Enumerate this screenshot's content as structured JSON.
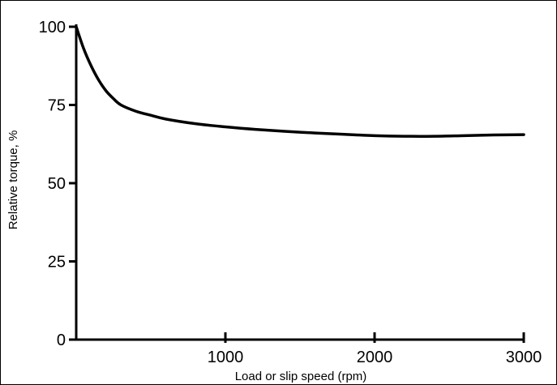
{
  "chart_data": {
    "type": "line",
    "title": "",
    "xlabel": "Load or slip speed (rpm)",
    "ylabel": "Relative torque, %",
    "xlim": [
      0,
      3000
    ],
    "ylim": [
      0,
      100
    ],
    "x_ticks": [
      1000,
      2000,
      3000
    ],
    "x_tick_labels": [
      "1000",
      "2000",
      "3000"
    ],
    "y_ticks": [
      0,
      25,
      50,
      75,
      100
    ],
    "y_tick_labels": [
      "0",
      "25",
      "50",
      "75",
      "100"
    ],
    "grid": false,
    "legend": "none",
    "series": [
      {
        "x": [
          0,
          50,
          100,
          150,
          200,
          250,
          300,
          400,
          500,
          600,
          800,
          1000,
          1200,
          1500,
          1800,
          2000,
          2200,
          2400,
          2600,
          2800,
          3000
        ],
        "y": [
          100,
          93,
          87.5,
          83,
          79.5,
          77,
          75,
          73,
          71.7,
          70.5,
          69,
          68,
          67.2,
          66.3,
          65.6,
          65.2,
          65,
          65,
          65.2,
          65.4,
          65.5
        ],
        "color": "#000000"
      }
    ]
  }
}
